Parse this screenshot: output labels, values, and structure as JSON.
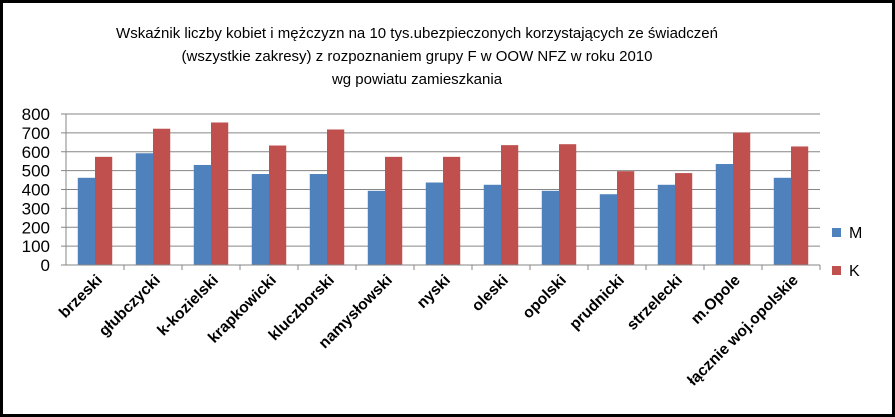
{
  "chart_data": {
    "type": "bar",
    "title": [
      "Wskaźnik liczby kobiet i mężczyzn na 10 tys.ubezpieczonych korzystających ze świadczeń",
      "(wszystkie zakresy) z rozpoznaniem grupy F w OOW NFZ w roku 2010",
      "wg powiatu zamieszkania"
    ],
    "categories": [
      "brzeski",
      "głubczycki",
      "k-kozielski",
      "krapkowicki",
      "kluczborski",
      "namysłowski",
      "nyski",
      "oleski",
      "opolski",
      "prudnicki",
      "strzelecki",
      "m.Opole",
      "łącznie woj.opolskie"
    ],
    "series": [
      {
        "name": "M",
        "color": "#4F81BD",
        "values": [
          462,
          592,
          530,
          482,
          482,
          393,
          437,
          425,
          393,
          375,
          425,
          535,
          462
        ]
      },
      {
        "name": "K",
        "color": "#C0504D",
        "values": [
          573,
          722,
          755,
          633,
          718,
          573,
          573,
          635,
          640,
          497,
          487,
          702,
          628
        ]
      }
    ],
    "ylim": [
      0,
      800
    ],
    "yticks": [
      "0",
      "100",
      "200",
      "300",
      "400",
      "500",
      "600",
      "700",
      "800"
    ],
    "grid": true,
    "legend_position": "right"
  }
}
